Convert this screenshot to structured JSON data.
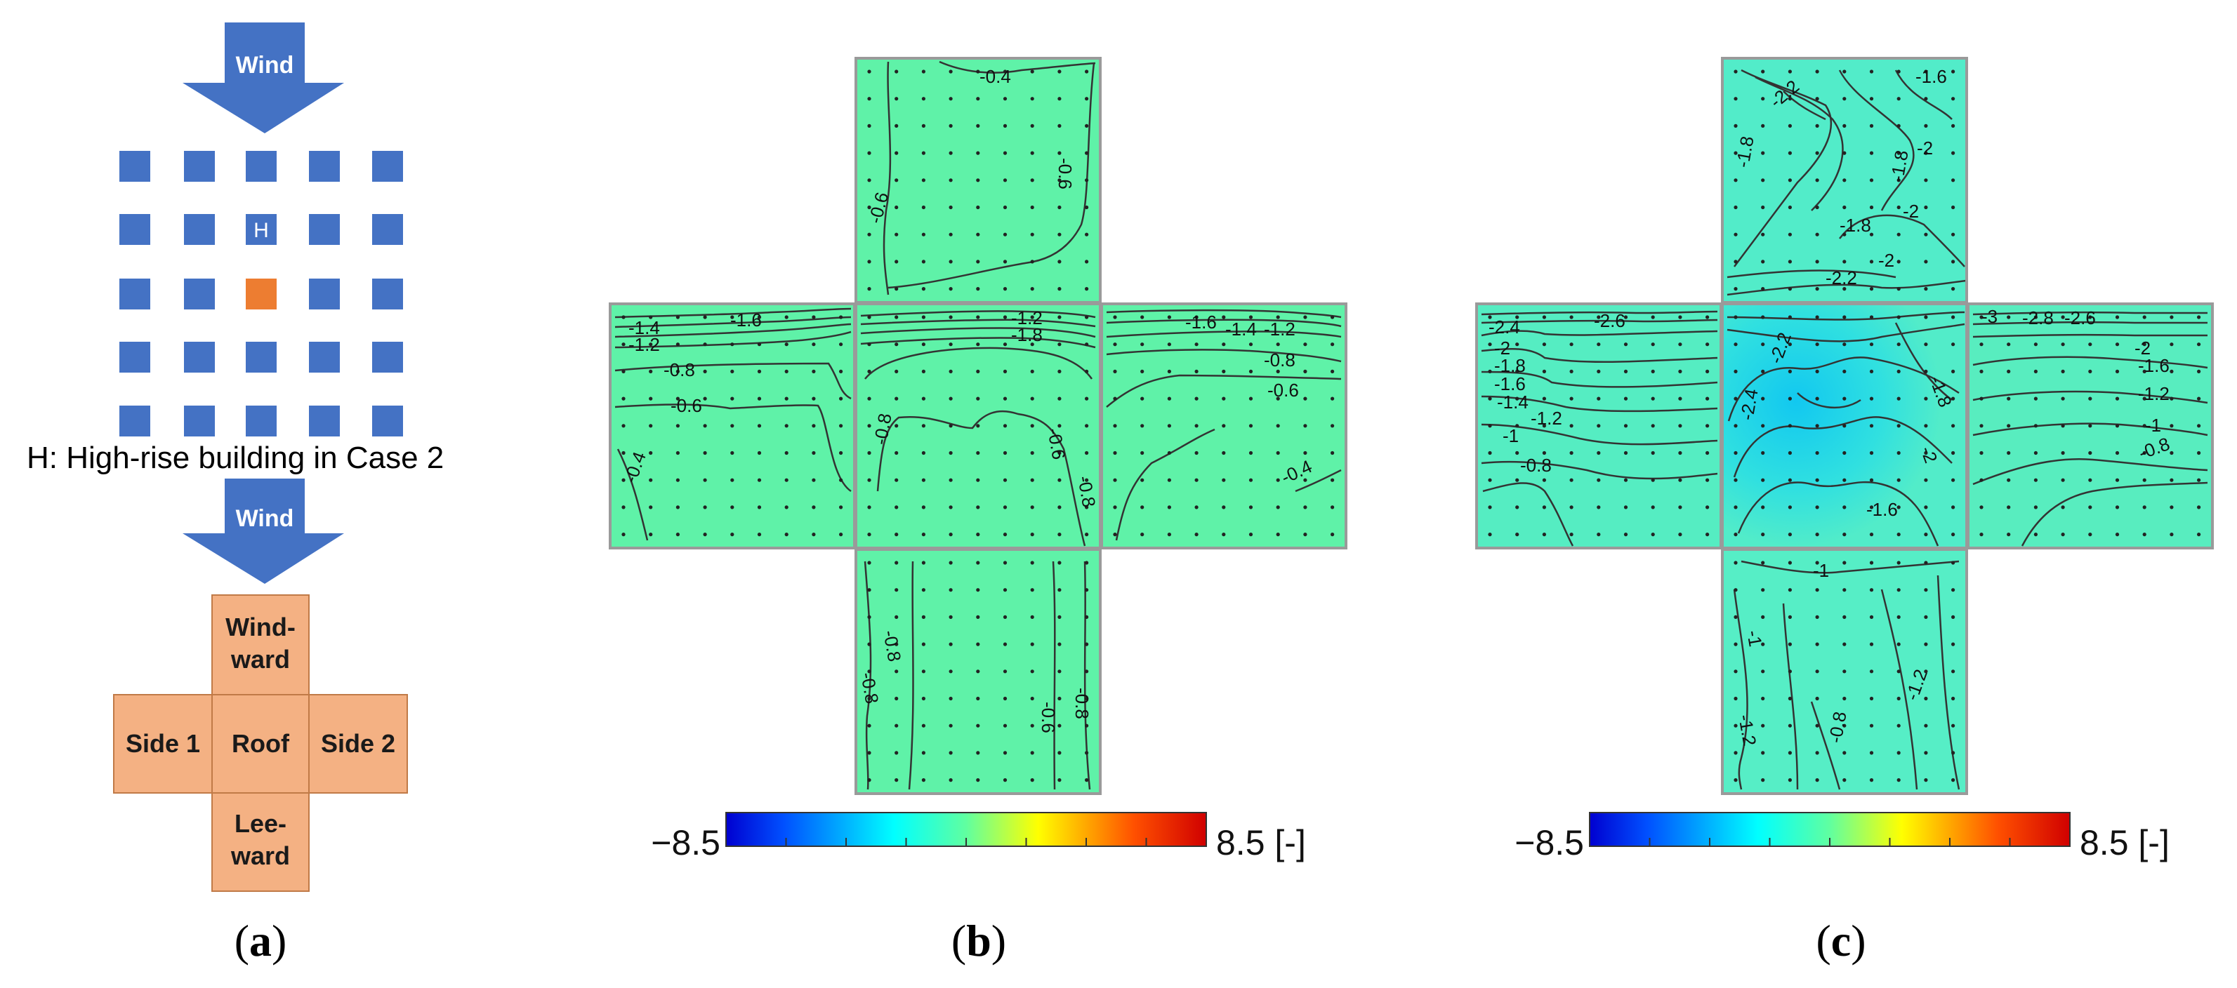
{
  "panel_a": {
    "wind_label_top": "Wind",
    "building_marker": "H",
    "caption": "H: High-rise building in Case 2",
    "wind_label_bottom": "Wind",
    "faces": {
      "windward_line1": "Wind-",
      "windward_line2": "ward",
      "side1": "Side 1",
      "roof": "Roof",
      "side2": "Side 2",
      "leeward_line1": "Lee-",
      "leeward_line2": "ward"
    },
    "colors": {
      "block": "#4472c4",
      "target_block": "#ed7d31",
      "face_fill": "#f4b183",
      "arrow": "#4472c4"
    },
    "label_open": "(",
    "label_letter": "a",
    "label_close": ")"
  },
  "panel_b": {
    "labels": {
      "windward": [
        "-0.4",
        "-0.6",
        "-0.6"
      ],
      "side1": [
        "-1.4",
        "-1.2",
        "-1.6",
        "-0.8",
        "-0.6",
        "-0.4"
      ],
      "roof": [
        "-1.2",
        "-1.8",
        "-0.8",
        "-0.6",
        "-0.8"
      ],
      "side2": [
        "-1.6",
        "-1.4",
        "-1.2",
        "-0.8",
        "-0.6",
        "-0.4"
      ],
      "leeward": [
        "-0.8",
        "-0.8",
        "-0.6",
        "-0.8"
      ]
    },
    "colorbar_min": "−8.5",
    "colorbar_max": "8.5 [-]",
    "label_open": "(",
    "label_letter": "b",
    "label_close": ")"
  },
  "panel_c": {
    "labels": {
      "windward": [
        "-1.6",
        "-2.2",
        "-1.8",
        "-2",
        "-1.8",
        "-2",
        "-1.8",
        "-2",
        "-2.2"
      ],
      "side1": [
        "-2.4",
        "-2.6",
        "-2",
        "-1.8",
        "-1.6",
        "-1.4",
        "-1.2",
        "-1",
        "-0.8"
      ],
      "roof": [
        "-2.4",
        "-2.2",
        "-2",
        "-1.8",
        "-1.6"
      ],
      "side2": [
        "-3",
        "-2.8",
        "-2.6",
        "-2",
        "-1.6",
        "-1.2",
        "-1",
        "-0.8"
      ],
      "leeward": [
        "-1",
        "-1",
        "-1.2",
        "-0.8",
        "-1.2"
      ]
    },
    "colorbar_min": "−8.5",
    "colorbar_max": "8.5 [-]",
    "label_open": "(",
    "label_letter": "c",
    "label_close": ")"
  },
  "colors": {
    "fill_b": "#5ff2a8",
    "fill_c": "#52ecc9",
    "fill_c_deep": "#19c8ee",
    "contour": "#333333",
    "frame": "#9a9a9a"
  }
}
